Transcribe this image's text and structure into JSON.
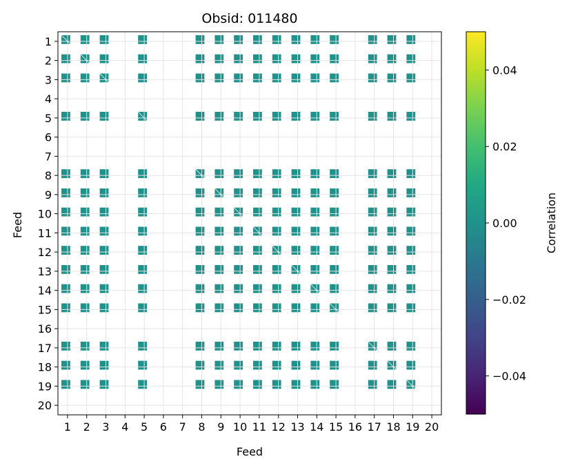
{
  "chart_data": {
    "type": "heatmap",
    "title": "Obsid: 011480",
    "xlabel": "Feed",
    "ylabel": "Feed",
    "x_ticks": [
      "1",
      "2",
      "3",
      "4",
      "5",
      "6",
      "7",
      "8",
      "9",
      "10",
      "11",
      "12",
      "13",
      "14",
      "15",
      "16",
      "17",
      "18",
      "19",
      "20"
    ],
    "y_ticks": [
      "1",
      "2",
      "3",
      "4",
      "5",
      "6",
      "7",
      "8",
      "9",
      "10",
      "11",
      "12",
      "13",
      "14",
      "15",
      "16",
      "17",
      "18",
      "19",
      "20"
    ],
    "active_feeds": [
      1,
      2,
      3,
      5,
      8,
      9,
      10,
      11,
      12,
      13,
      14,
      15,
      17,
      18,
      19
    ],
    "inactive_feeds": [
      4,
      6,
      7,
      16,
      20
    ],
    "cell_value": 0.0,
    "grid": true,
    "colormap": "viridis",
    "colorbar": {
      "label": "Correlation",
      "range": [
        -0.05,
        0.05
      ],
      "ticks": [
        0.04,
        0.02,
        0.0,
        -0.02,
        -0.04
      ],
      "tick_labels": [
        "0.04",
        "0.02",
        "0.00",
        "−0.02",
        "−0.04"
      ]
    },
    "cell_color": "#21918c"
  }
}
